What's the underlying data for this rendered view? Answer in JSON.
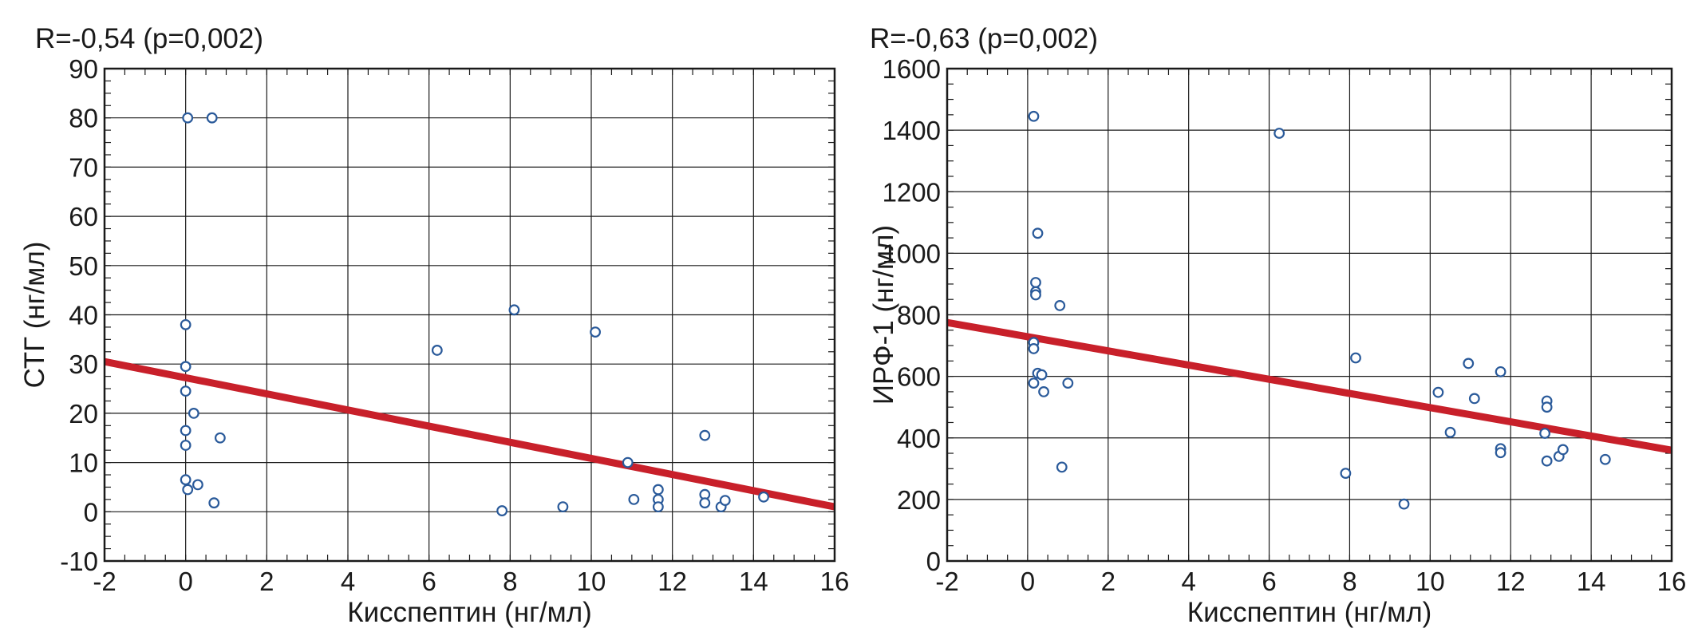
{
  "chart_data": [
    {
      "type": "scatter",
      "title": "R=-0,54 (p=0,002)",
      "xlabel": "Кисспептин (нг/мл)",
      "ylabel": "СТГ (нг/мл)",
      "xlim": [
        -2,
        16
      ],
      "ylim": [
        -10,
        90
      ],
      "x_ticks": [
        -2,
        0,
        2,
        4,
        6,
        8,
        10,
        12,
        14,
        16
      ],
      "y_ticks": [
        -10,
        0,
        10,
        20,
        30,
        40,
        50,
        60,
        70,
        80,
        90
      ],
      "x_tick_labels": [
        "-2",
        "0",
        "2",
        "4",
        "6",
        "8",
        "10",
        "12",
        "14",
        "16"
      ],
      "y_tick_labels": [
        "-10",
        "0",
        "10",
        "20",
        "30",
        "40",
        "50",
        "60",
        "70",
        "80",
        "90"
      ],
      "grid": true,
      "points": [
        {
          "x": 0.05,
          "y": 80
        },
        {
          "x": 0.65,
          "y": 80
        },
        {
          "x": 0.0,
          "y": 38
        },
        {
          "x": 0.0,
          "y": 29.5
        },
        {
          "x": 0.0,
          "y": 24.5
        },
        {
          "x": 0.2,
          "y": 20
        },
        {
          "x": 0.0,
          "y": 16.5
        },
        {
          "x": 0.0,
          "y": 13.5
        },
        {
          "x": 0.85,
          "y": 15
        },
        {
          "x": 0.0,
          "y": 6.5
        },
        {
          "x": 0.05,
          "y": 4.5
        },
        {
          "x": 0.3,
          "y": 5.5
        },
        {
          "x": 0.7,
          "y": 1.8
        },
        {
          "x": 6.2,
          "y": 32.8
        },
        {
          "x": 8.1,
          "y": 41
        },
        {
          "x": 10.1,
          "y": 36.5
        },
        {
          "x": 7.8,
          "y": 0.2
        },
        {
          "x": 9.3,
          "y": 1
        },
        {
          "x": 10.9,
          "y": 10
        },
        {
          "x": 11.05,
          "y": 2.5
        },
        {
          "x": 11.65,
          "y": 4.5
        },
        {
          "x": 11.65,
          "y": 2.5
        },
        {
          "x": 11.65,
          "y": 1
        },
        {
          "x": 12.8,
          "y": 15.5
        },
        {
          "x": 12.8,
          "y": 3.5
        },
        {
          "x": 12.8,
          "y": 1.8
        },
        {
          "x": 13.2,
          "y": 1
        },
        {
          "x": 13.3,
          "y": 2.3
        },
        {
          "x": 14.25,
          "y": 3
        }
      ],
      "fit_line": {
        "x": [
          -2,
          16
        ],
        "y": [
          30.5,
          1.0
        ],
        "color": "#c8202a"
      },
      "marker_color": "#2a5a9a"
    },
    {
      "type": "scatter",
      "title": "R=-0,63 (p=0,002)",
      "xlabel": "Кисспептин (нг/мл)",
      "ylabel": "ИРФ-1 (нг/мл)",
      "xlim": [
        -2,
        16
      ],
      "ylim": [
        0,
        1600
      ],
      "x_ticks": [
        -2,
        0,
        2,
        4,
        6,
        8,
        10,
        12,
        14,
        16
      ],
      "y_ticks": [
        0,
        200,
        400,
        600,
        800,
        1000,
        1200,
        1400,
        1600
      ],
      "x_tick_labels": [
        "-2",
        "0",
        "2",
        "4",
        "6",
        "8",
        "10",
        "12",
        "14",
        "16"
      ],
      "y_tick_labels": [
        "0",
        "200",
        "400",
        "600",
        "800",
        "1000",
        "1200",
        "1400",
        "1600"
      ],
      "grid": true,
      "points": [
        {
          "x": 0.15,
          "y": 1445
        },
        {
          "x": 6.25,
          "y": 1390
        },
        {
          "x": 0.25,
          "y": 1065
        },
        {
          "x": 0.2,
          "y": 905
        },
        {
          "x": 0.2,
          "y": 875
        },
        {
          "x": 0.2,
          "y": 865
        },
        {
          "x": 0.8,
          "y": 830
        },
        {
          "x": 0.15,
          "y": 710
        },
        {
          "x": 0.15,
          "y": 690
        },
        {
          "x": 0.25,
          "y": 610
        },
        {
          "x": 0.35,
          "y": 605
        },
        {
          "x": 0.15,
          "y": 578
        },
        {
          "x": 0.4,
          "y": 550
        },
        {
          "x": 1.0,
          "y": 578
        },
        {
          "x": 0.85,
          "y": 305
        },
        {
          "x": 8.15,
          "y": 660
        },
        {
          "x": 7.9,
          "y": 285
        },
        {
          "x": 9.35,
          "y": 185
        },
        {
          "x": 10.2,
          "y": 548
        },
        {
          "x": 10.95,
          "y": 642
        },
        {
          "x": 11.1,
          "y": 528
        },
        {
          "x": 10.5,
          "y": 418
        },
        {
          "x": 11.75,
          "y": 615
        },
        {
          "x": 11.75,
          "y": 365
        },
        {
          "x": 11.75,
          "y": 352
        },
        {
          "x": 12.9,
          "y": 520
        },
        {
          "x": 12.9,
          "y": 500
        },
        {
          "x": 12.85,
          "y": 415
        },
        {
          "x": 12.9,
          "y": 325
        },
        {
          "x": 13.2,
          "y": 340
        },
        {
          "x": 13.3,
          "y": 362
        },
        {
          "x": 14.35,
          "y": 330
        }
      ],
      "fit_line": {
        "x": [
          -2,
          16
        ],
        "y": [
          775,
          360
        ],
        "color": "#c8202a"
      },
      "marker_color": "#2a5a9a"
    }
  ]
}
